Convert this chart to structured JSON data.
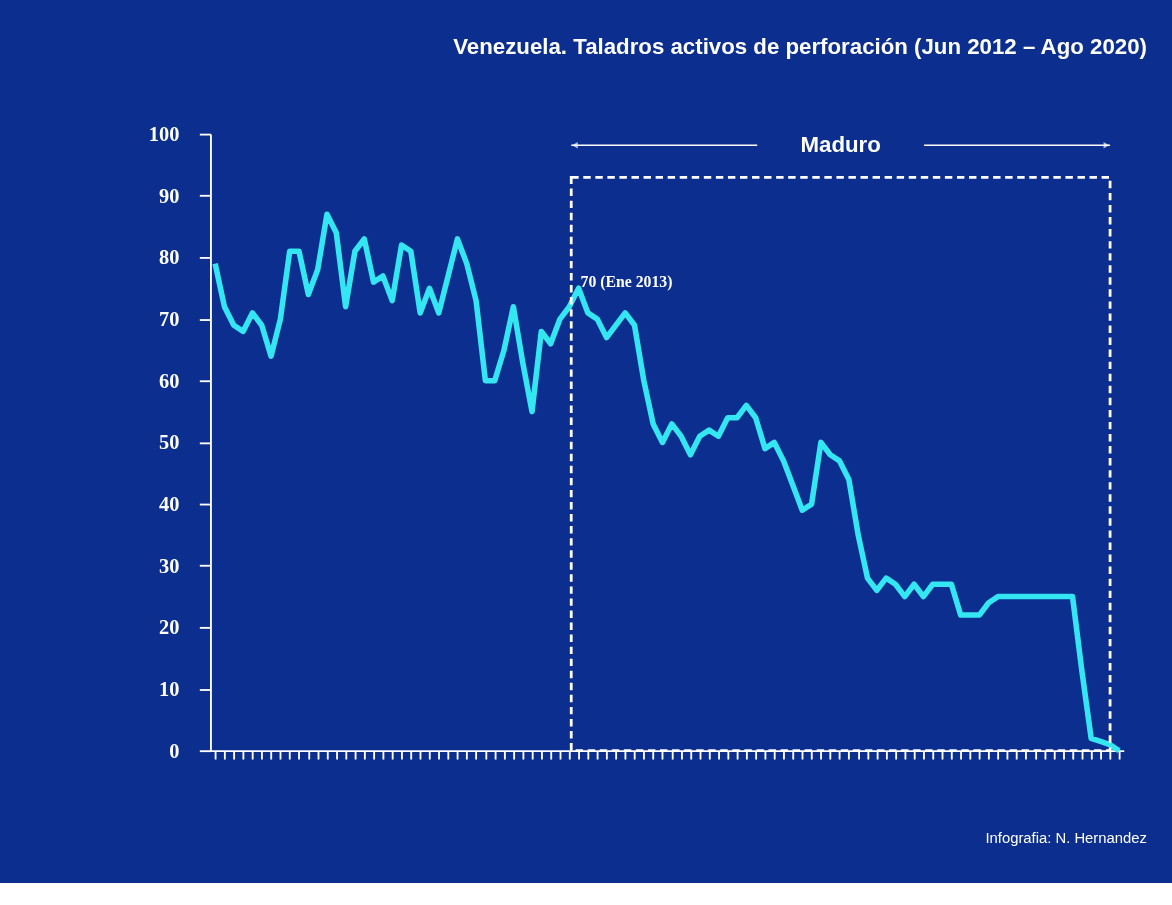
{
  "chart_data": {
    "type": "line",
    "title": "Venezuela. Taladros  activos de perforación (Jun 2012 – Ago 2020)",
    "categories": [
      null,
      null,
      null,
      null,
      null,
      null,
      null,
      null,
      null,
      null,
      null,
      null,
      null,
      null,
      null,
      null,
      null,
      null,
      null,
      null,
      null,
      null,
      null,
      null,
      null,
      null,
      null,
      null,
      null,
      null,
      null,
      null,
      null,
      null,
      null,
      null,
      null,
      null,
      null,
      null,
      null,
      null,
      null,
      null,
      null,
      null,
      null,
      null,
      null,
      null,
      null,
      null,
      null,
      null,
      null,
      null,
      null,
      null,
      null,
      null,
      null,
      null,
      null,
      null,
      null,
      null,
      null,
      null,
      null,
      null,
      null,
      null,
      null,
      null,
      null,
      null,
      null,
      null,
      null,
      null,
      null,
      null,
      null,
      null,
      null,
      null,
      null,
      null,
      null,
      null,
      null,
      null,
      null,
      null,
      null,
      null,
      null,
      null
    ],
    "series": [
      {
        "color": "#33e6f2",
        "values": [
          79,
          72,
          69,
          68,
          71,
          69,
          64,
          70,
          81,
          81,
          74,
          78,
          87,
          84,
          72,
          81,
          83,
          76,
          77,
          73,
          82,
          81,
          71,
          75,
          71,
          77,
          83,
          79,
          73,
          60,
          60,
          65,
          72,
          63,
          55,
          68,
          66,
          70,
          72,
          75,
          71,
          70,
          67,
          69,
          71,
          69,
          60,
          53,
          50,
          53,
          51,
          48,
          51,
          52,
          51,
          54,
          54,
          56,
          54,
          49,
          50,
          47,
          43,
          39,
          40,
          50,
          48,
          47,
          44,
          35,
          28,
          26,
          28,
          27,
          25,
          27,
          25,
          27,
          27,
          27,
          22,
          22,
          22,
          24,
          25,
          25,
          25,
          25,
          25,
          25,
          25,
          25,
          25,
          13,
          2,
          1.5,
          1,
          0
        ]
      }
    ],
    "ylim": [
      0,
      100
    ],
    "yticks": [
      0,
      10,
      20,
      30,
      40,
      50,
      60,
      70,
      80,
      90,
      100
    ],
    "annotations": [
      "Maduro",
      "70 (Ene 2013)",
      "Infografia: N. Hernandez"
    ],
    "grid": false,
    "line_style": "solid",
    "marker": "none"
  }
}
